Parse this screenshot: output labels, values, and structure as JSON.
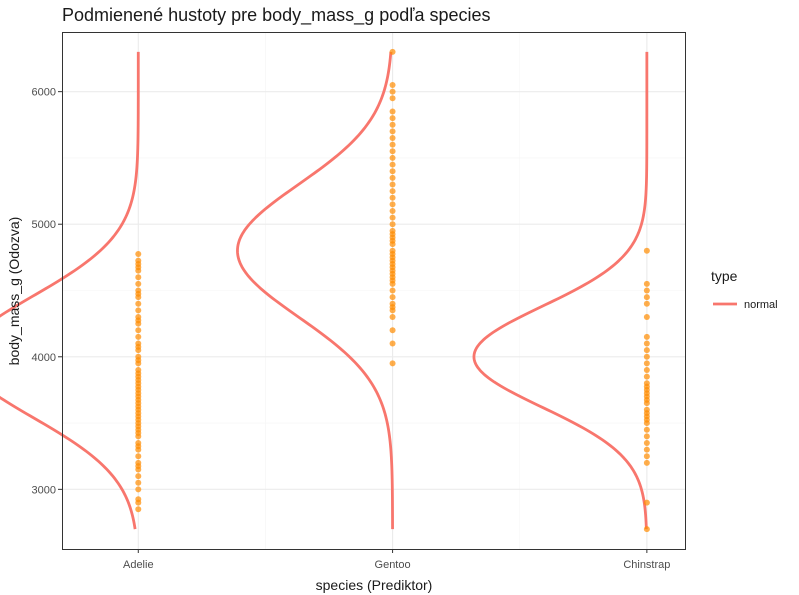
{
  "chart_data": {
    "type": "scatter",
    "title": "Podmienené hustoty pre body_mass_g podľa species",
    "xlabel": "species (Prediktor)",
    "ylabel": "body_mass_g (Odozva)",
    "categories": [
      "Adelie",
      "Gentoo",
      "Chinstrap"
    ],
    "x_range": [
      -0.3,
      2.15
    ],
    "ylim": [
      2550,
      6450
    ],
    "y_ticks": [
      3000,
      4000,
      5000,
      6000
    ],
    "grid": true,
    "legend": {
      "title": "type",
      "position": "right",
      "entries": [
        {
          "label": "normal",
          "color": "#F8766D"
        }
      ]
    },
    "colors": {
      "density": "#F8766D",
      "points": "#FF8C00"
    },
    "densities": [
      {
        "category": "Adelie",
        "mean": 4000,
        "sd": 460,
        "y_range": [
          2700,
          6300
        ],
        "peak_width": 0.68
      },
      {
        "category": "Gentoo",
        "mean": 4800,
        "sd": 500,
        "y_range": [
          2700,
          6300
        ],
        "peak_width": 0.61
      },
      {
        "category": "Chinstrap",
        "mean": 4000,
        "sd": 380,
        "y_range": [
          2700,
          6300
        ],
        "peak_width": 0.68
      }
    ],
    "points": [
      {
        "category": "Adelie",
        "values": [
          2850,
          2900,
          2925,
          3000,
          3050,
          3100,
          3150,
          3175,
          3200,
          3250,
          3300,
          3325,
          3350,
          3400,
          3425,
          3450,
          3475,
          3500,
          3525,
          3550,
          3575,
          3600,
          3625,
          3650,
          3675,
          3700,
          3725,
          3750,
          3775,
          3800,
          3825,
          3850,
          3875,
          3900,
          3950,
          3975,
          4000,
          4050,
          4075,
          4100,
          4150,
          4200,
          4250,
          4275,
          4300,
          4350,
          4400,
          4450,
          4475,
          4500,
          4550,
          4600,
          4650,
          4675,
          4700,
          4725,
          4775
        ]
      },
      {
        "category": "Gentoo",
        "values": [
          3950,
          4100,
          4200,
          4300,
          4350,
          4375,
          4400,
          4450,
          4500,
          4550,
          4575,
          4600,
          4625,
          4650,
          4675,
          4700,
          4725,
          4750,
          4775,
          4800,
          4850,
          4875,
          4900,
          4925,
          4950,
          5000,
          5050,
          5100,
          5150,
          5200,
          5250,
          5300,
          5350,
          5400,
          5450,
          5500,
          5550,
          5600,
          5650,
          5700,
          5750,
          5800,
          5850,
          5950,
          6000,
          6050,
          6300
        ]
      },
      {
        "category": "Chinstrap",
        "values": [
          2700,
          2900,
          3200,
          3250,
          3300,
          3350,
          3400,
          3450,
          3500,
          3525,
          3550,
          3575,
          3600,
          3650,
          3675,
          3700,
          3725,
          3750,
          3775,
          3800,
          3850,
          3900,
          3950,
          4000,
          4050,
          4100,
          4150,
          4300,
          4400,
          4450,
          4500,
          4550,
          4800
        ]
      }
    ]
  }
}
